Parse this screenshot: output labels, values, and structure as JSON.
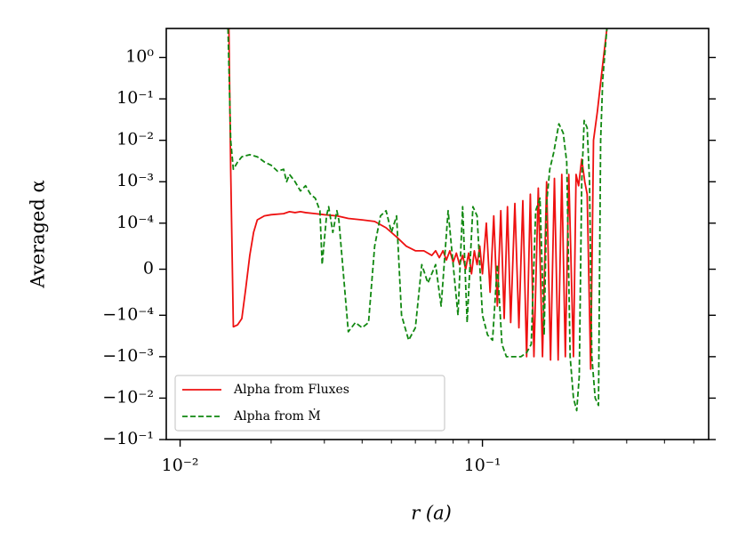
{
  "chart_data": {
    "type": "line",
    "xlabel": "r    (a)",
    "ylabel": "Averaged α",
    "xscale": "log",
    "yscale": "symlog",
    "linthresh": 0.0001,
    "linscale": 1,
    "xlim": [
      0.009,
      0.56
    ],
    "ylim": [
      -0.1,
      5
    ],
    "xticks": [
      {
        "value": 0.01,
        "label": "10⁻²"
      },
      {
        "value": 0.1,
        "label": "10⁻¹"
      }
    ],
    "xminorticks": [
      0.02,
      0.03,
      0.04,
      0.05,
      0.06,
      0.07,
      0.08,
      0.09,
      0.2,
      0.3,
      0.4,
      0.5
    ],
    "yticks": [
      {
        "value": 1,
        "label": "10⁰"
      },
      {
        "value": 0.1,
        "label": "10⁻¹"
      },
      {
        "value": 0.01,
        "label": "10⁻²"
      },
      {
        "value": 0.001,
        "label": "10⁻³"
      },
      {
        "value": 0.0001,
        "label": "10⁻⁴"
      },
      0,
      {
        "value": -0.0001,
        "label": "−10⁻⁴"
      },
      {
        "value": -0.001,
        "label": "−10⁻³"
      },
      {
        "value": -0.01,
        "label": "−10⁻²"
      },
      {
        "value": -0.1,
        "label": "−10⁻¹"
      }
    ],
    "legend": "lower left",
    "series": [
      {
        "name": "Alpha from Fluxes",
        "color": "#ee1111",
        "dash": "solid",
        "x": [
          0.0145,
          0.0147,
          0.015,
          0.0155,
          0.016,
          0.0165,
          0.017,
          0.0175,
          0.018,
          0.019,
          0.02,
          0.022,
          0.023,
          0.024,
          0.025,
          0.026,
          0.028,
          0.03,
          0.033,
          0.036,
          0.04,
          0.044,
          0.048,
          0.052,
          0.056,
          0.06,
          0.064,
          0.068,
          0.07,
          0.072,
          0.074,
          0.076,
          0.078,
          0.08,
          0.082,
          0.084,
          0.086,
          0.088,
          0.09,
          0.092,
          0.094,
          0.096,
          0.098,
          0.1,
          0.103,
          0.106,
          0.109,
          0.112,
          0.115,
          0.118,
          0.121,
          0.124,
          0.128,
          0.132,
          0.136,
          0.14,
          0.144,
          0.148,
          0.153,
          0.158,
          0.163,
          0.168,
          0.173,
          0.178,
          0.183,
          0.188,
          0.193,
          0.2,
          0.204,
          0.208,
          0.213,
          0.218,
          0.222,
          0.228,
          0.233,
          0.24,
          0.25,
          0.258
        ],
        "values": [
          5,
          0.002,
          -0.00019,
          -0.00017,
          -0.00012,
          -4e-05,
          3e-05,
          8e-05,
          0.00012,
          0.00015,
          0.00016,
          0.00017,
          0.00019,
          0.00018,
          0.00019,
          0.00018,
          0.00017,
          0.00016,
          0.00015,
          0.00013,
          0.00012,
          0.00011,
          9e-05,
          7e-05,
          5e-05,
          4e-05,
          4e-05,
          3e-05,
          4e-05,
          2.5e-05,
          4e-05,
          2e-05,
          4e-05,
          1.5e-05,
          3.5e-05,
          1e-05,
          3e-05,
          0,
          3.5e-05,
          -1e-05,
          4e-05,
          1e-05,
          5e-05,
          -1e-05,
          0.0001,
          -5e-05,
          0.00015,
          -8e-05,
          0.0002,
          -0.00012,
          0.00025,
          -0.00015,
          0.0003,
          -0.0002,
          0.00035,
          -0.001,
          0.0005,
          -0.001,
          0.0007,
          -0.001,
          0.001,
          -0.0012,
          0.0012,
          -0.0012,
          0.0015,
          -0.001,
          0.0015,
          -0.001,
          0.0015,
          0.0008,
          0.0035,
          0.001,
          0.0005,
          -0.002,
          0.01,
          0.05,
          0.7,
          5
        ]
      },
      {
        "name": "Alpha from Ṁ",
        "color": "#118811",
        "dash": "dashed",
        "x": [
          0.0144,
          0.0147,
          0.015,
          0.0155,
          0.016,
          0.017,
          0.018,
          0.019,
          0.02,
          0.021,
          0.022,
          0.0225,
          0.023,
          0.024,
          0.025,
          0.026,
          0.027,
          0.028,
          0.029,
          0.0295,
          0.0305,
          0.031,
          0.032,
          0.033,
          0.0335,
          0.036,
          0.038,
          0.04,
          0.042,
          0.044,
          0.046,
          0.048,
          0.05,
          0.052,
          0.054,
          0.057,
          0.06,
          0.063,
          0.066,
          0.07,
          0.073,
          0.077,
          0.08,
          0.083,
          0.086,
          0.089,
          0.093,
          0.096,
          0.1,
          0.104,
          0.108,
          0.112,
          0.116,
          0.12,
          0.128,
          0.134,
          0.14,
          0.145,
          0.15,
          0.155,
          0.16,
          0.163,
          0.167,
          0.172,
          0.179,
          0.185,
          0.19,
          0.195,
          0.2,
          0.205,
          0.209,
          0.213,
          0.217,
          0.222,
          0.226,
          0.23,
          0.236,
          0.242,
          0.246,
          0.25,
          0.258
        ],
        "values": [
          5,
          0.01,
          0.002,
          0.003,
          0.004,
          0.0045,
          0.004,
          0.003,
          0.0025,
          0.0018,
          0.002,
          0.001,
          0.0015,
          0.001,
          0.0006,
          0.0008,
          0.0005,
          0.0004,
          0.0002,
          1e-05,
          0.00015,
          0.00025,
          8e-05,
          0.0002,
          0.00012,
          -0.00025,
          -0.00015,
          -0.0002,
          -0.00015,
          5e-05,
          0.00015,
          0.0002,
          8e-05,
          0.00015,
          -0.0001,
          -0.0004,
          -0.0002,
          1e-05,
          -3e-05,
          1e-05,
          -8e-05,
          0.0002,
          1e-05,
          -0.0001,
          0.00025,
          -0.00015,
          0.00025,
          0.00015,
          -0.0001,
          -0.0003,
          -0.0004,
          1e-05,
          -0.0005,
          -0.001,
          -0.001,
          -0.001,
          -0.0008,
          -0.0005,
          0.0002,
          0.0004,
          -0.0003,
          0.0003,
          0.002,
          0.005,
          0.025,
          0.015,
          0.003,
          -0.001,
          -0.01,
          -0.02,
          -0.003,
          0.001,
          0.03,
          0.02,
          0.001,
          -0.001,
          -0.01,
          -0.015,
          0.01,
          0.3,
          5
        ]
      }
    ]
  }
}
